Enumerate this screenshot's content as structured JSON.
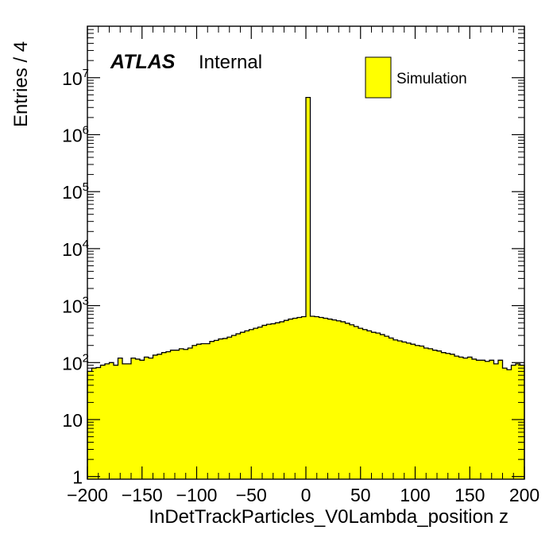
{
  "chart_data": {
    "type": "bar",
    "histogram": true,
    "title": "",
    "xlabel": "InDetTrackParticles_V0Lambda_position z",
    "ylabel": "Entries / 4",
    "xlim": [
      -200,
      200
    ],
    "ylim": [
      0.9,
      80000000
    ],
    "log_y": true,
    "bin_width": 4,
    "x_ticks": [
      -200,
      -150,
      -100,
      -50,
      0,
      50,
      100,
      150,
      200
    ],
    "x_tick_labels": [
      "−200",
      "−150",
      "−100",
      "−50",
      "0",
      "50",
      "100",
      "150",
      "200"
    ],
    "y_ticks": [
      1,
      10,
      100,
      1000,
      10000,
      100000,
      1000000,
      10000000
    ],
    "y_tick_labels": [
      {
        "base": "1",
        "exp": ""
      },
      {
        "base": "10",
        "exp": ""
      },
      {
        "base": "10",
        "exp": "2"
      },
      {
        "base": "10",
        "exp": "3"
      },
      {
        "base": "10",
        "exp": "4"
      },
      {
        "base": "10",
        "exp": "5"
      },
      {
        "base": "10",
        "exp": "6"
      },
      {
        "base": "10",
        "exp": "7"
      }
    ],
    "fill_color": "#ffff00",
    "line_color": "#000000",
    "atlas_label": "ATLAS",
    "atlas_sublabel": "Internal",
    "legend": [
      {
        "name": "Simulation",
        "color": "#ffff00"
      }
    ],
    "legend_position": "top-right",
    "series": [
      {
        "name": "Simulation",
        "bin_edges_start": -200,
        "values": [
          70,
          80,
          82,
          90,
          95,
          100,
          90,
          120,
          95,
          95,
          120,
          115,
          110,
          125,
          120,
          135,
          140,
          150,
          155,
          165,
          165,
          175,
          170,
          180,
          200,
          210,
          215,
          215,
          235,
          245,
          260,
          265,
          280,
          300,
          320,
          340,
          360,
          380,
          400,
          420,
          450,
          470,
          480,
          500,
          520,
          550,
          580,
          600,
          620,
          640,
          4500000,
          650,
          640,
          620,
          600,
          580,
          560,
          540,
          520,
          490,
          460,
          430,
          400,
          380,
          360,
          340,
          330,
          310,
          290,
          270,
          250,
          240,
          230,
          220,
          210,
          200,
          195,
          180,
          175,
          165,
          160,
          150,
          145,
          140,
          130,
          125,
          120,
          125,
          115,
          110,
          110,
          105,
          110,
          95,
          110,
          80,
          75,
          90,
          95,
          90
        ]
      }
    ]
  }
}
